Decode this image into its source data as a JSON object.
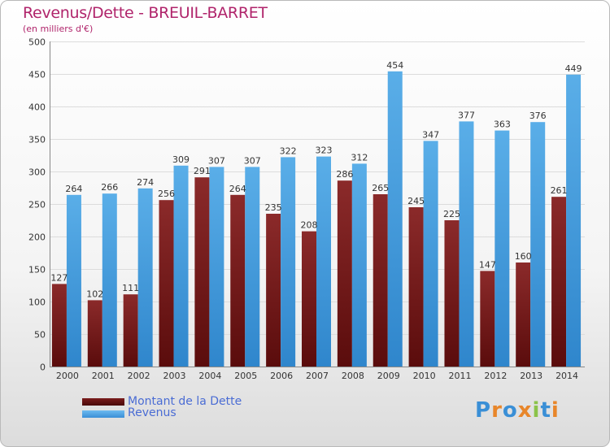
{
  "header": {
    "title": "Revenus/Dette - BREUIL-BARRET",
    "subtitle": "(en milliers d'€)"
  },
  "legend": {
    "debt_label": "Montant de la Dette",
    "revenue_label": "Revenus"
  },
  "logo": {
    "text": "Proxiti",
    "letters": [
      {
        "ch": "P",
        "color": "#3a8fd6"
      },
      {
        "ch": "r",
        "color": "#e8862a"
      },
      {
        "ch": "o",
        "color": "#3a8fd6"
      },
      {
        "ch": "x",
        "color": "#e8862a"
      },
      {
        "ch": "i",
        "color": "#8bc34a"
      },
      {
        "ch": "t",
        "color": "#3a8fd6"
      },
      {
        "ch": "i",
        "color": "#e8862a"
      }
    ]
  },
  "colors": {
    "debt_top": "#8b2a2a",
    "debt_bottom": "#5a0c0c",
    "revenue_top": "#5aaee8",
    "revenue_bottom": "#2f86cc",
    "title": "#b0246b",
    "legend_text": "#4a6cd4"
  },
  "chart_data": {
    "type": "bar",
    "title": "Revenus/Dette - BREUIL-BARRET",
    "subtitle": "(en milliers d'€)",
    "categories": [
      "2000",
      "2001",
      "2002",
      "2003",
      "2004",
      "2005",
      "2006",
      "2007",
      "2008",
      "2009",
      "2010",
      "2011",
      "2012",
      "2013",
      "2014"
    ],
    "series": [
      {
        "name": "Montant de la Dette",
        "values": [
          127,
          102,
          111,
          256,
          291,
          264,
          235,
          208,
          286,
          265,
          245,
          225,
          147,
          160,
          261
        ]
      },
      {
        "name": "Revenus",
        "values": [
          264,
          266,
          274,
          309,
          307,
          307,
          322,
          323,
          312,
          454,
          347,
          377,
          363,
          376,
          449
        ]
      }
    ],
    "ylim": [
      0,
      500
    ],
    "yticks": [
      0,
      50,
      100,
      150,
      200,
      250,
      300,
      350,
      400,
      450,
      500
    ],
    "grid": true,
    "legend_position": "bottom-left"
  }
}
